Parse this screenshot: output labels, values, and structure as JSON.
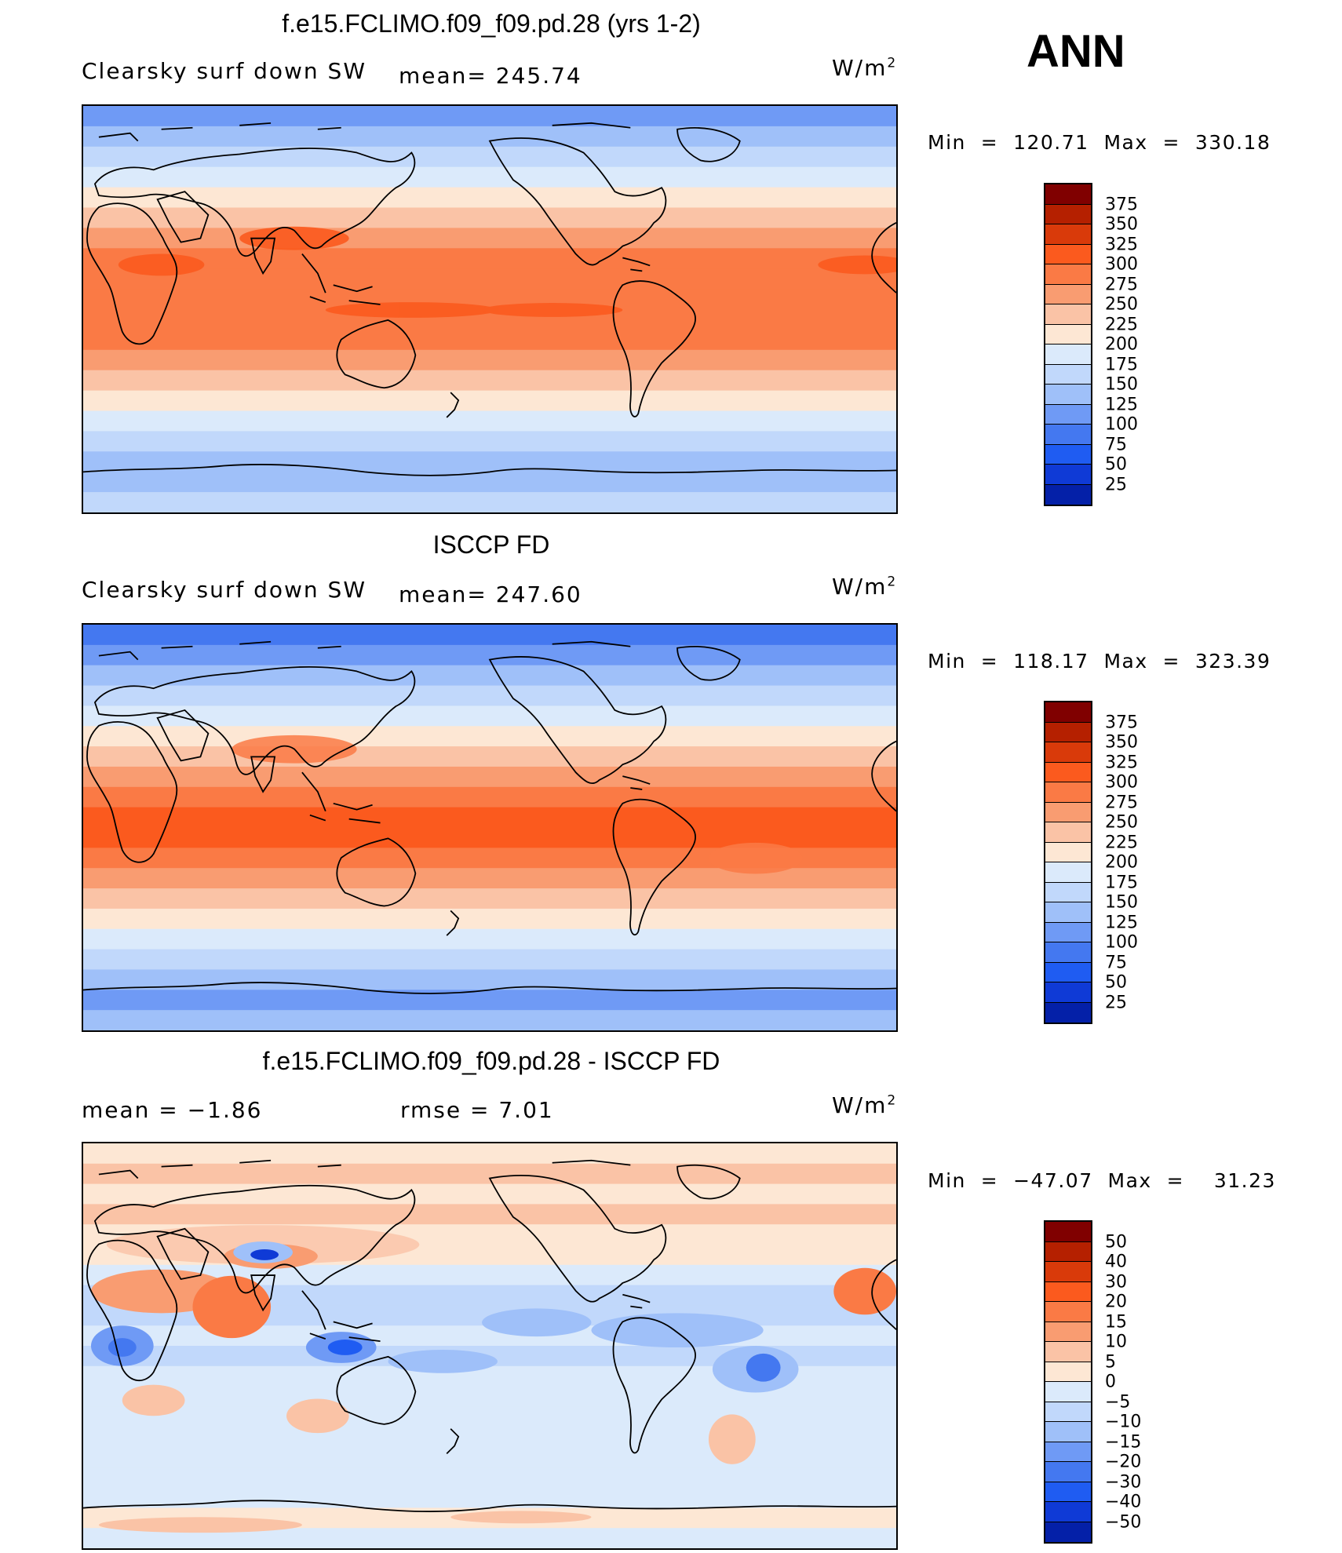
{
  "season": "ANN",
  "panels": [
    {
      "title": "f.e15.FCLIMO.f09_f09.pd.28 (yrs 1-2)",
      "left_label": "Clearsky surf down SW",
      "mid_label": "mean= 245.74",
      "units": "W/m",
      "units_sup": "2",
      "minmax": "Min  =  120.71  Max  =  330.18",
      "colorbar": "abs"
    },
    {
      "title": "ISCCP FD",
      "left_label": "Clearsky surf down SW",
      "mid_label": "mean= 247.60",
      "units": "W/m",
      "units_sup": "2",
      "minmax": "Min  =  118.17  Max  =  323.39",
      "colorbar": "abs"
    },
    {
      "title": "f.e15.FCLIMO.f09_f09.pd.28 - ISCCP FD",
      "left_label": "mean  =    −1.86",
      "mid_label": "rmse  =     7.01",
      "units": "W/m",
      "units_sup": "2",
      "minmax": "Min  =  −47.07  Max  =    31.23",
      "colorbar": "diff"
    }
  ],
  "colorbars": {
    "abs": {
      "ticks": [
        "375",
        "350",
        "325",
        "300",
        "275",
        "250",
        "225",
        "200",
        "175",
        "150",
        "125",
        "100",
        "75",
        "50",
        "25"
      ],
      "colors": [
        "#800000",
        "#b52000",
        "#d93a0a",
        "#fb5a1e",
        "#fa7a45",
        "#f99c71",
        "#fac3a6",
        "#fde7d4",
        "#dbeafb",
        "#c1d8fb",
        "#9fc0f9",
        "#6f9af5",
        "#4478f0",
        "#1f5cf2",
        "#0f3ad6",
        "#0420a8"
      ]
    },
    "diff": {
      "ticks": [
        "50",
        "40",
        "30",
        "20",
        "15",
        "10",
        "5",
        "0",
        "−5",
        "−10",
        "−15",
        "−20",
        "−30",
        "−40",
        "−50"
      ],
      "colors": [
        "#800000",
        "#b52000",
        "#d93a0a",
        "#fb5a1e",
        "#fa7a45",
        "#f99c71",
        "#fac3a6",
        "#fde7d4",
        "#dbeafb",
        "#c1d8fb",
        "#9fc0f9",
        "#6f9af5",
        "#4478f0",
        "#1f5cf2",
        "#0f3ad6",
        "#0420a8"
      ]
    }
  },
  "map_fields": {
    "panel1_bands": [
      "#6f9af5",
      "#9fc0f9",
      "#c1d8fb",
      "#dbeafb",
      "#fde7d4",
      "#fac3a6",
      "#f99c71",
      "#fa7a45",
      "#fa7a45",
      "#fa7a45",
      "#fa7a45",
      "#fa7a45",
      "#f99c71",
      "#fac3a6",
      "#fde7d4",
      "#dbeafb",
      "#c1d8fb",
      "#9fc0f9",
      "#9fc0f9",
      "#c1d8fb"
    ],
    "panel2_bands": [
      "#4478f0",
      "#6f9af5",
      "#9fc0f9",
      "#c1d8fb",
      "#dbeafb",
      "#fde7d4",
      "#fac3a6",
      "#f99c71",
      "#fa7a45",
      "#fb5a1e",
      "#fb5a1e",
      "#fa7a45",
      "#f99c71",
      "#fac3a6",
      "#fde7d4",
      "#dbeafb",
      "#c1d8fb",
      "#9fc0f9",
      "#6f9af5",
      "#9fc0f9"
    ],
    "panel3_bands": [
      "#fde7d4",
      "#fac3a6",
      "#fde7d4",
      "#fac3a6",
      "#fde7d4",
      "#fde7d4",
      "#dbeafb",
      "#c1d8fb",
      "#c1d8fb",
      "#dbeafb",
      "#c1d8fb",
      "#dbeafb",
      "#dbeafb",
      "#dbeafb",
      "#dbeafb",
      "#dbeafb",
      "#dbeafb",
      "#dbeafb",
      "#fde7d4",
      "#dbeafb"
    ]
  }
}
